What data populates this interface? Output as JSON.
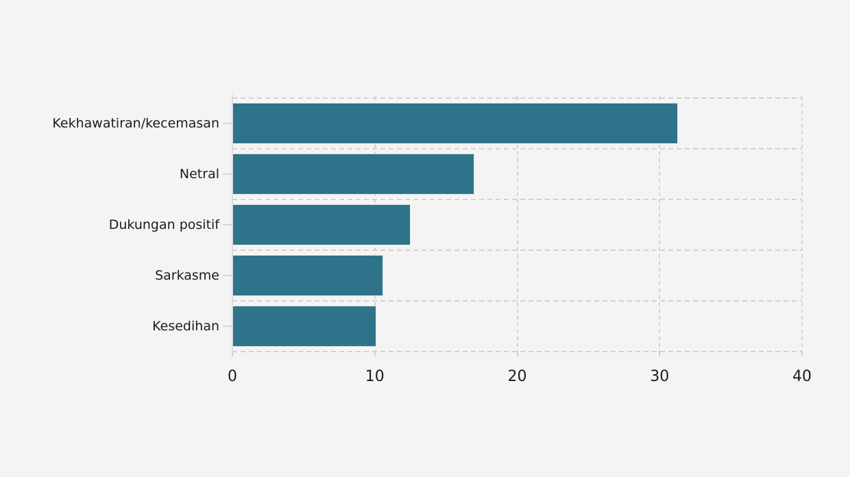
{
  "page": {
    "background_color": "#f4f4f5"
  },
  "chart_data": {
    "type": "bar",
    "orientation": "horizontal",
    "title": "",
    "xlabel": "",
    "ylabel": "",
    "categories": [
      "Kekhawatiran/kecemasan",
      "Netral",
      "Dukungan positif",
      "Sarkasme",
      "Kesedihan"
    ],
    "values": [
      31.3,
      17.0,
      12.5,
      10.6,
      10.1
    ],
    "xlim": [
      0,
      40
    ],
    "x_ticks": [
      0,
      10,
      20,
      30,
      40
    ],
    "x_tick_labels": [
      "0",
      "10",
      "20",
      "30",
      "40"
    ],
    "grid": "dashed",
    "legend_position": "none",
    "bar_color": "#2e7389",
    "bar_edge_color": "#d9e5ea",
    "grid_color": "#d2d2d2",
    "axis_line_color": "#dcdcdc",
    "text_color": "#1c1c1c"
  }
}
